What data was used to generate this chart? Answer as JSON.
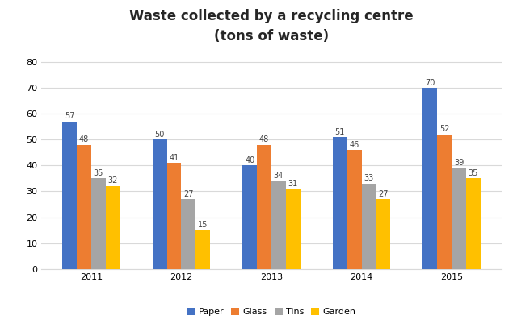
{
  "title": "Waste collected by a recycling centre\n(tons of waste)",
  "years": [
    "2011",
    "2012",
    "2013",
    "2014",
    "2015"
  ],
  "categories": [
    "Paper",
    "Glass",
    "Tins",
    "Garden"
  ],
  "values": {
    "Paper": [
      57,
      50,
      40,
      51,
      70
    ],
    "Glass": [
      48,
      41,
      48,
      46,
      52
    ],
    "Tins": [
      35,
      27,
      34,
      33,
      39
    ],
    "Garden": [
      32,
      15,
      31,
      27,
      35
    ]
  },
  "colors": {
    "Paper": "#4472C4",
    "Glass": "#ED7D31",
    "Tins": "#A5A5A5",
    "Garden": "#FFC000"
  },
  "ylim": [
    0,
    85
  ],
  "yticks": [
    0,
    10,
    20,
    30,
    40,
    50,
    60,
    70,
    80
  ],
  "bar_width": 0.16,
  "label_fontsize": 7,
  "title_fontsize": 12,
  "axis_fontsize": 8,
  "legend_fontsize": 8,
  "background_color": "#ffffff",
  "grid_color": "#d9d9d9"
}
